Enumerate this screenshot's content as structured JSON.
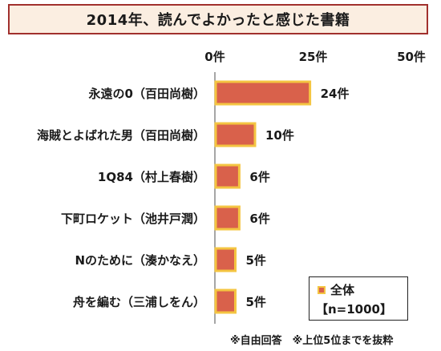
{
  "title": "2014年、読んでよかったと感じた書籍",
  "chart_data": {
    "type": "bar",
    "orientation": "horizontal",
    "categories": [
      "永遠の0（百田尚樹）",
      "海賊とよばれた男（百田尚樹）",
      "1Q84（村上春樹）",
      "下町ロケット（池井戸潤）",
      "Nのために（湊かなえ）",
      "舟を編む（三浦しをん）"
    ],
    "values": [
      24,
      10,
      6,
      6,
      5,
      5
    ],
    "value_labels": [
      "24件",
      "10件",
      "6件",
      "6件",
      "5件",
      "5件"
    ],
    "xlim": [
      0,
      50
    ],
    "ticks": [
      0,
      25,
      50
    ],
    "tick_labels": [
      "0件",
      "25件",
      "50件"
    ],
    "tick_position": "top",
    "grid": false,
    "legend_position": "bottom-right",
    "series": [
      {
        "name": "全体",
        "values": [
          24,
          10,
          6,
          6,
          5,
          5
        ]
      }
    ],
    "colors": {
      "bar_fill": "#d9614b",
      "bar_border": "#f4c542",
      "axis": "#888888"
    }
  },
  "legend": {
    "label": "全体",
    "sample": "【n=1000】"
  },
  "footnote": "※自由回答　※上位5位までを抜粋"
}
